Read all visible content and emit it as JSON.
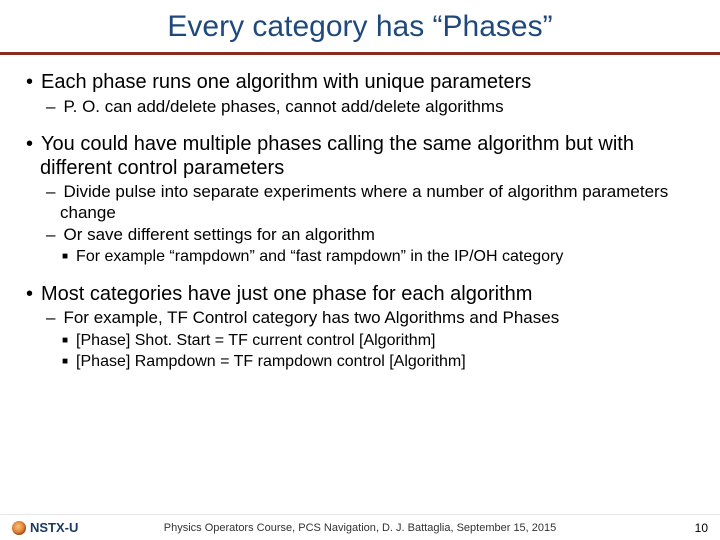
{
  "colors": {
    "title": "#1f497d",
    "rule": "#8b2a1f",
    "text": "#000000",
    "background": "#ffffff"
  },
  "fonts": {
    "title_size": 30,
    "b1_size": 20,
    "b2_size": 17,
    "b3_size": 16,
    "footer_size": 11
  },
  "title": "Every category has “Phases”",
  "bullets": {
    "b1a": "Each phase runs one algorithm with unique parameters",
    "b2a": "P. O. can add/delete phases, cannot add/delete algorithms",
    "b1b": "You could have multiple phases calling the same algorithm but with different control parameters",
    "b2b": "Divide pulse into separate experiments where a number of algorithm parameters change",
    "b2c": "Or save different settings for an algorithm",
    "b3a": "For example “rampdown” and “fast rampdown” in the IP/OH category",
    "b1c": "Most categories have just one phase for each algorithm",
    "b2d": "For example, TF Control category has two Algorithms and Phases",
    "b3b": "[Phase] Shot. Start = TF current control [Algorithm]",
    "b3c": "[Phase] Rampdown = TF rampdown control [Algorithm]"
  },
  "footer": {
    "logo_text": "NSTX-U",
    "center": "Physics Operators Course, PCS Navigation, D. J. Battaglia, September 15, 2015",
    "page": "10"
  }
}
